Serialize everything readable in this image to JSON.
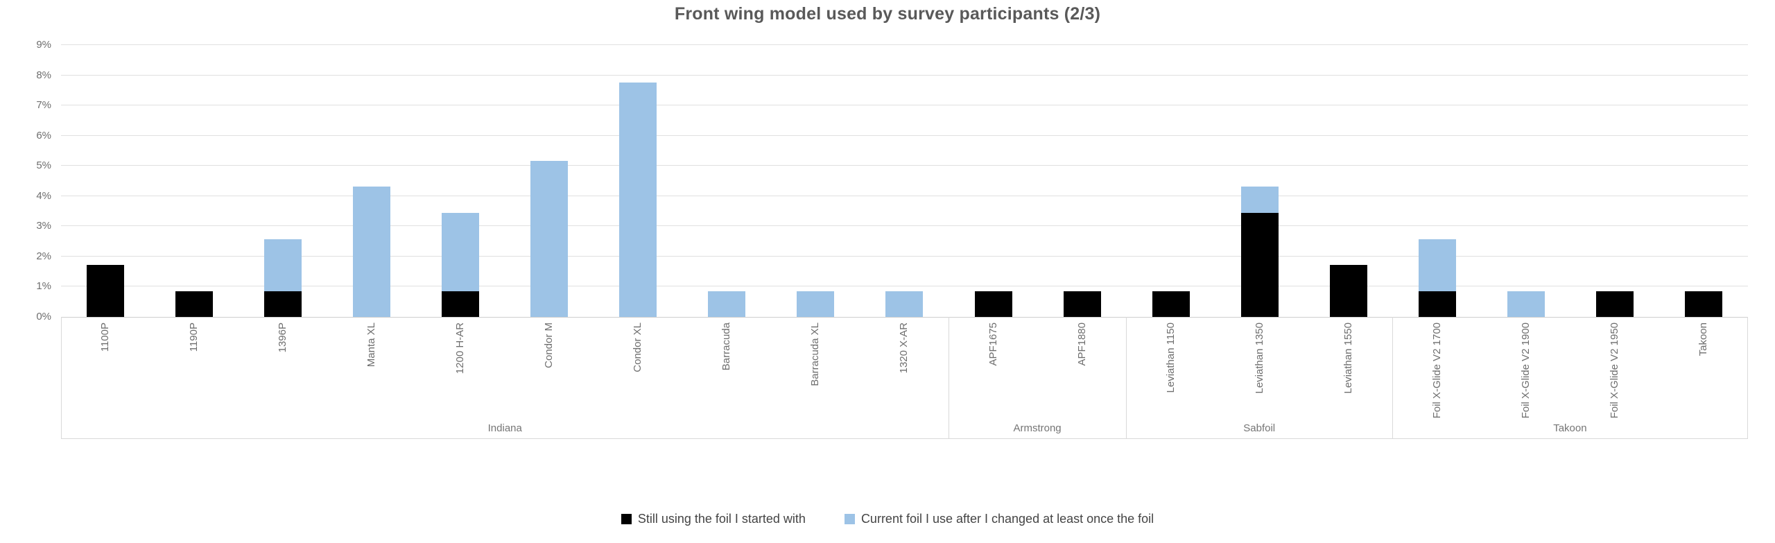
{
  "title": "Front wing model used by survey participants (2/3)",
  "chart_data": {
    "type": "bar",
    "stacked": true,
    "title": "Front wing model used by survey participants (2/3)",
    "xlabel": "",
    "ylabel": "",
    "ylim": [
      0,
      9
    ],
    "ytick_step": 1,
    "ytick_suffix": "%",
    "grid": true,
    "legend_position": "bottom",
    "groups": [
      {
        "label": "Indiana",
        "count": 10
      },
      {
        "label": "Armstrong",
        "count": 2
      },
      {
        "label": "Sabfoil",
        "count": 3
      },
      {
        "label": "Takoon",
        "count": 4
      }
    ],
    "categories": [
      "1100P",
      "1190P",
      "1396P",
      "Manta XL",
      "1200 H-AR",
      "Condor M",
      "Condor XL",
      "Barracuda",
      "Barracuda XL",
      "1320 X-AR",
      "APF1675",
      "APF1880",
      "Leviathan 1150",
      "Leviathan 1350",
      "Leviathan 1550",
      "Foil X-Glide V2 1700",
      "Foil X-Glide V2 1900",
      "Foil X-Glide V2 1950",
      "Takoon"
    ],
    "series": [
      {
        "name": "Still using the foil I started with",
        "color": "#000000",
        "values": [
          1.72,
          0.86,
          0.86,
          0,
          0.86,
          0,
          0,
          0,
          0,
          0,
          0.86,
          0.86,
          0.86,
          3.45,
          1.72,
          0.86,
          0,
          0.86,
          0.86
        ]
      },
      {
        "name": "Current foil I use after I changed at least once the foil",
        "color": "#9DC3E6",
        "values": [
          0,
          0,
          1.72,
          4.31,
          2.59,
          5.17,
          7.76,
          0.86,
          0.86,
          0.86,
          0,
          0,
          0,
          0.86,
          0,
          1.72,
          0.86,
          0,
          0
        ]
      }
    ]
  }
}
